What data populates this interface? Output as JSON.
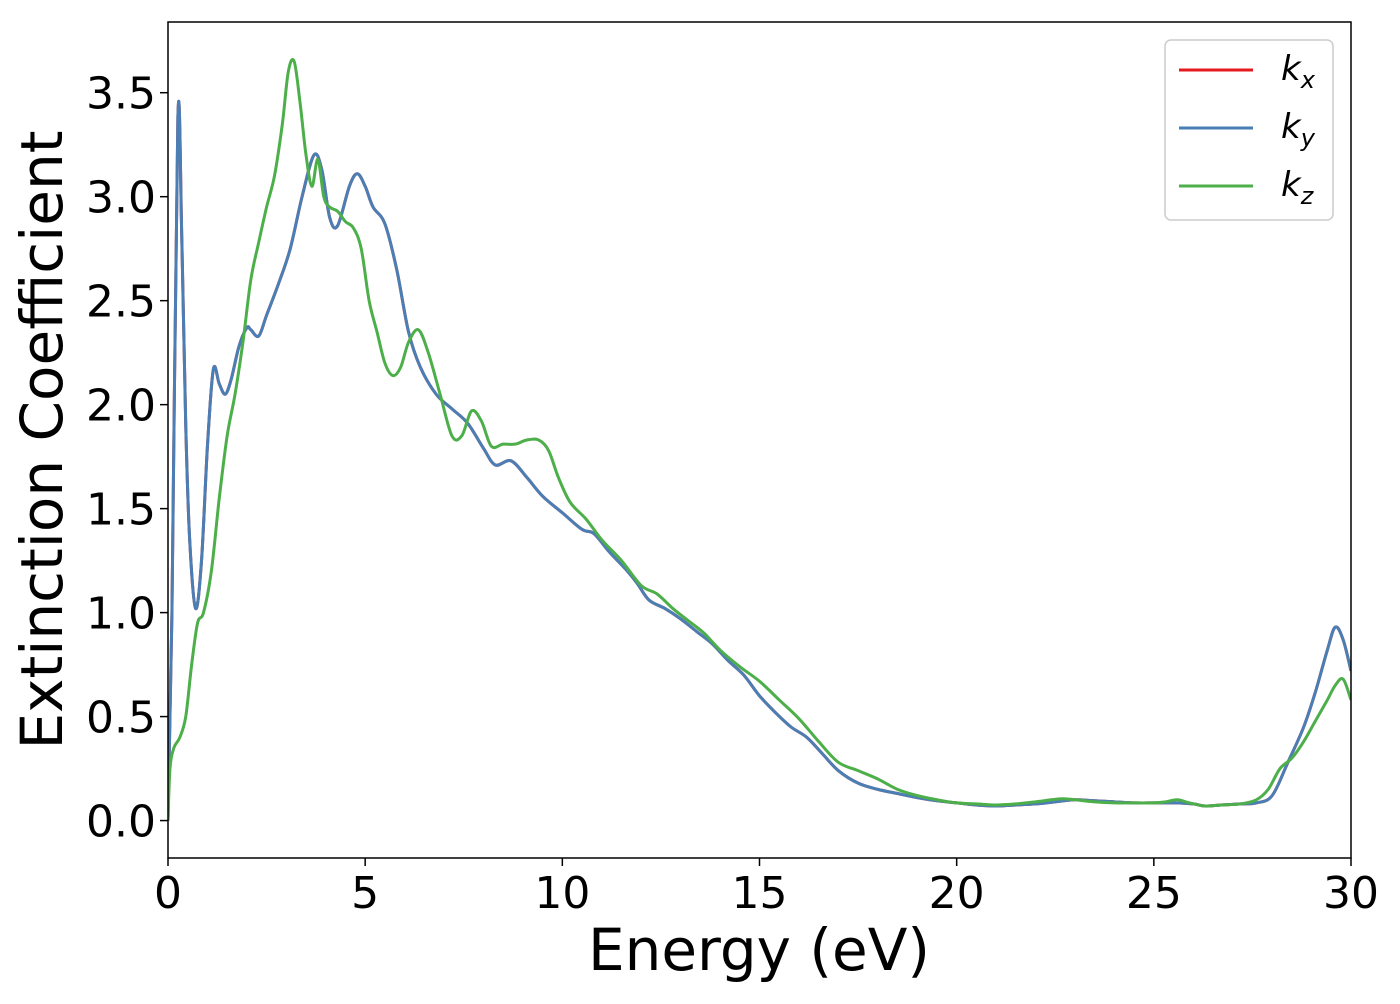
{
  "chart_data": {
    "type": "line",
    "xlabel": "Energy (eV)",
    "ylabel": "Extinction Coefficient",
    "xlim": [
      0,
      30
    ],
    "ylim": [
      -0.18,
      3.84
    ],
    "x_ticks": [
      "0",
      "5",
      "10",
      "15",
      "20",
      "25",
      "30"
    ],
    "x_tick_values": [
      0,
      5,
      10,
      15,
      20,
      25,
      30
    ],
    "y_ticks": [
      "0.0",
      "0.5",
      "1.0",
      "1.5",
      "2.0",
      "2.5",
      "3.0",
      "3.5"
    ],
    "y_tick_values": [
      0.0,
      0.5,
      1.0,
      1.5,
      2.0,
      2.5,
      3.0,
      3.5
    ],
    "grid": false,
    "legend_position": "top-right",
    "series": [
      {
        "name": "k_x",
        "legend_base": "k",
        "legend_sub": "x",
        "color": "#e41a1c",
        "x": [
          0,
          0.1,
          0.25,
          0.35,
          0.45,
          0.55,
          0.7,
          0.85,
          1.0,
          1.15,
          1.3,
          1.45,
          1.6,
          1.8,
          2.0,
          2.1,
          2.3,
          2.5,
          2.8,
          3.1,
          3.4,
          3.7,
          3.9,
          4.1,
          4.3,
          4.6,
          4.8,
          5.0,
          5.2,
          5.5,
          5.8,
          6.1,
          6.4,
          6.8,
          7.2,
          7.6,
          8.0,
          8.3,
          8.7,
          9.1,
          9.5,
          10.0,
          10.5,
          10.8,
          11.2,
          11.6,
          11.9,
          12.2,
          12.6,
          13.0,
          13.4,
          13.8,
          14.2,
          14.6,
          15.0,
          15.4,
          15.8,
          16.2,
          16.6,
          17.0,
          17.5,
          18.0,
          18.5,
          19.0,
          19.5,
          20.0,
          20.5,
          21.0,
          21.5,
          22.0,
          22.5,
          23.0,
          23.5,
          24.0,
          24.5,
          25.0,
          25.5,
          26.0,
          26.3,
          26.7,
          27.2,
          27.6,
          28.0,
          28.4,
          28.8,
          29.1,
          29.4,
          29.6,
          29.8,
          30.0
        ],
        "y": [
          0.0,
          1.0,
          3.38,
          2.8,
          1.9,
          1.35,
          1.02,
          1.25,
          1.8,
          2.17,
          2.1,
          2.05,
          2.12,
          2.28,
          2.37,
          2.36,
          2.33,
          2.43,
          2.58,
          2.75,
          3.0,
          3.2,
          3.13,
          2.9,
          2.86,
          3.05,
          3.11,
          3.05,
          2.95,
          2.87,
          2.65,
          2.35,
          2.18,
          2.05,
          1.98,
          1.91,
          1.79,
          1.71,
          1.73,
          1.65,
          1.56,
          1.48,
          1.4,
          1.38,
          1.29,
          1.21,
          1.14,
          1.06,
          1.02,
          0.97,
          0.91,
          0.85,
          0.77,
          0.7,
          0.6,
          0.52,
          0.45,
          0.4,
          0.32,
          0.24,
          0.18,
          0.15,
          0.13,
          0.11,
          0.095,
          0.085,
          0.075,
          0.07,
          0.075,
          0.08,
          0.09,
          0.1,
          0.095,
          0.09,
          0.085,
          0.085,
          0.085,
          0.08,
          0.07,
          0.075,
          0.08,
          0.085,
          0.12,
          0.28,
          0.45,
          0.62,
          0.82,
          0.93,
          0.87,
          0.72
        ]
      },
      {
        "name": "k_y",
        "legend_base": "k",
        "legend_sub": "y",
        "color": "#4a7fb5",
        "x": [
          0,
          0.1,
          0.25,
          0.35,
          0.45,
          0.55,
          0.7,
          0.85,
          1.0,
          1.15,
          1.3,
          1.45,
          1.6,
          1.8,
          2.0,
          2.1,
          2.3,
          2.5,
          2.8,
          3.1,
          3.4,
          3.7,
          3.9,
          4.1,
          4.3,
          4.6,
          4.8,
          5.0,
          5.2,
          5.5,
          5.8,
          6.1,
          6.4,
          6.8,
          7.2,
          7.6,
          8.0,
          8.3,
          8.7,
          9.1,
          9.5,
          10.0,
          10.5,
          10.8,
          11.2,
          11.6,
          11.9,
          12.2,
          12.6,
          13.0,
          13.4,
          13.8,
          14.2,
          14.6,
          15.0,
          15.4,
          15.8,
          16.2,
          16.6,
          17.0,
          17.5,
          18.0,
          18.5,
          19.0,
          19.5,
          20.0,
          20.5,
          21.0,
          21.5,
          22.0,
          22.5,
          23.0,
          23.5,
          24.0,
          24.5,
          25.0,
          25.5,
          26.0,
          26.3,
          26.7,
          27.2,
          27.6,
          28.0,
          28.4,
          28.8,
          29.1,
          29.4,
          29.6,
          29.8,
          30.0
        ],
        "y": [
          0.0,
          1.0,
          3.38,
          2.8,
          1.9,
          1.35,
          1.02,
          1.25,
          1.8,
          2.17,
          2.1,
          2.05,
          2.12,
          2.28,
          2.37,
          2.36,
          2.33,
          2.43,
          2.58,
          2.75,
          3.0,
          3.2,
          3.13,
          2.9,
          2.86,
          3.05,
          3.11,
          3.05,
          2.95,
          2.87,
          2.65,
          2.35,
          2.18,
          2.05,
          1.98,
          1.91,
          1.79,
          1.71,
          1.73,
          1.65,
          1.56,
          1.48,
          1.4,
          1.38,
          1.29,
          1.21,
          1.14,
          1.06,
          1.02,
          0.97,
          0.91,
          0.85,
          0.77,
          0.7,
          0.6,
          0.52,
          0.45,
          0.4,
          0.32,
          0.24,
          0.18,
          0.15,
          0.13,
          0.11,
          0.095,
          0.085,
          0.075,
          0.07,
          0.075,
          0.08,
          0.09,
          0.1,
          0.095,
          0.09,
          0.085,
          0.085,
          0.085,
          0.08,
          0.07,
          0.075,
          0.08,
          0.085,
          0.12,
          0.28,
          0.45,
          0.62,
          0.82,
          0.93,
          0.87,
          0.72
        ]
      },
      {
        "name": "k_z",
        "legend_base": "k",
        "legend_sub": "z",
        "color": "#4daf4a",
        "x": [
          0,
          0.05,
          0.15,
          0.3,
          0.45,
          0.6,
          0.75,
          0.9,
          1.1,
          1.3,
          1.5,
          1.7,
          1.9,
          2.1,
          2.3,
          2.5,
          2.7,
          2.9,
          3.05,
          3.2,
          3.35,
          3.5,
          3.65,
          3.8,
          3.95,
          4.1,
          4.3,
          4.5,
          4.7,
          4.9,
          5.1,
          5.3,
          5.5,
          5.7,
          5.9,
          6.1,
          6.35,
          6.6,
          6.9,
          7.2,
          7.45,
          7.7,
          7.95,
          8.2,
          8.5,
          8.8,
          9.1,
          9.4,
          9.65,
          9.9,
          10.2,
          10.6,
          11.0,
          11.5,
          12.0,
          12.4,
          12.8,
          13.2,
          13.6,
          14.0,
          14.5,
          15.0,
          15.5,
          16.0,
          16.5,
          17.0,
          17.5,
          18.0,
          18.5,
          19.0,
          19.5,
          20.0,
          20.5,
          21.0,
          21.5,
          22.0,
          22.4,
          22.7,
          23.0,
          23.5,
          24.0,
          24.5,
          25.0,
          25.3,
          25.6,
          25.9,
          26.3,
          26.7,
          27.2,
          27.6,
          27.9,
          28.2,
          28.5,
          28.8,
          29.1,
          29.4,
          29.6,
          29.8,
          30.0
        ],
        "y": [
          0.0,
          0.25,
          0.35,
          0.4,
          0.5,
          0.75,
          0.95,
          1.0,
          1.2,
          1.55,
          1.85,
          2.05,
          2.3,
          2.6,
          2.78,
          2.95,
          3.1,
          3.35,
          3.6,
          3.65,
          3.45,
          3.2,
          3.05,
          3.18,
          3.0,
          2.95,
          2.93,
          2.88,
          2.85,
          2.75,
          2.5,
          2.35,
          2.2,
          2.14,
          2.18,
          2.3,
          2.36,
          2.25,
          2.05,
          1.85,
          1.85,
          1.97,
          1.92,
          1.8,
          1.81,
          1.81,
          1.83,
          1.83,
          1.78,
          1.65,
          1.53,
          1.45,
          1.35,
          1.25,
          1.13,
          1.09,
          1.02,
          0.96,
          0.9,
          0.82,
          0.74,
          0.67,
          0.58,
          0.49,
          0.38,
          0.28,
          0.24,
          0.2,
          0.15,
          0.12,
          0.1,
          0.085,
          0.08,
          0.075,
          0.08,
          0.09,
          0.1,
          0.105,
          0.1,
          0.09,
          0.085,
          0.085,
          0.085,
          0.09,
          0.1,
          0.085,
          0.07,
          0.075,
          0.08,
          0.1,
          0.15,
          0.25,
          0.3,
          0.38,
          0.48,
          0.58,
          0.65,
          0.68,
          0.58
        ]
      }
    ]
  }
}
